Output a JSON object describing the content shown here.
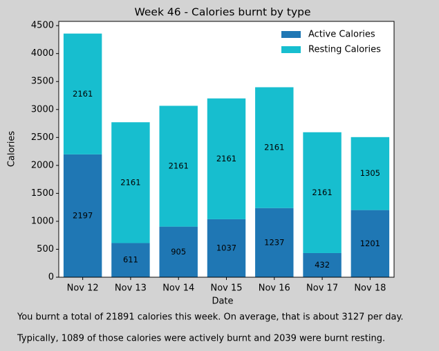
{
  "chart_data": {
    "type": "bar",
    "stacked": true,
    "title": "Week 46 - Calories burnt by type",
    "x_label": "Date",
    "y_label": "Calories",
    "categories": [
      "Nov 12",
      "Nov 13",
      "Nov 14",
      "Nov 15",
      "Nov 16",
      "Nov 17",
      "Nov 18"
    ],
    "series": [
      {
        "name": "Active Calories",
        "color": "#1f77b4",
        "values": [
          2197,
          611,
          905,
          1037,
          1237,
          432,
          1201
        ]
      },
      {
        "name": "Resting Calories",
        "color": "#17becf",
        "values": [
          2161,
          2161,
          2161,
          2161,
          2161,
          2161,
          1305
        ]
      }
    ],
    "ylim": [
      0,
      4576
    ],
    "yticks": [
      0,
      500,
      1000,
      1500,
      2000,
      2500,
      3000,
      3500,
      4000,
      4500
    ],
    "legend": "upper right",
    "data_labels": true
  },
  "summary": [
    "You burnt a total of 21891 calories this week. On average, that is about 3127 per day.",
    "Typically, 1089 of those calories were actively burnt and 2039 were burnt resting."
  ]
}
